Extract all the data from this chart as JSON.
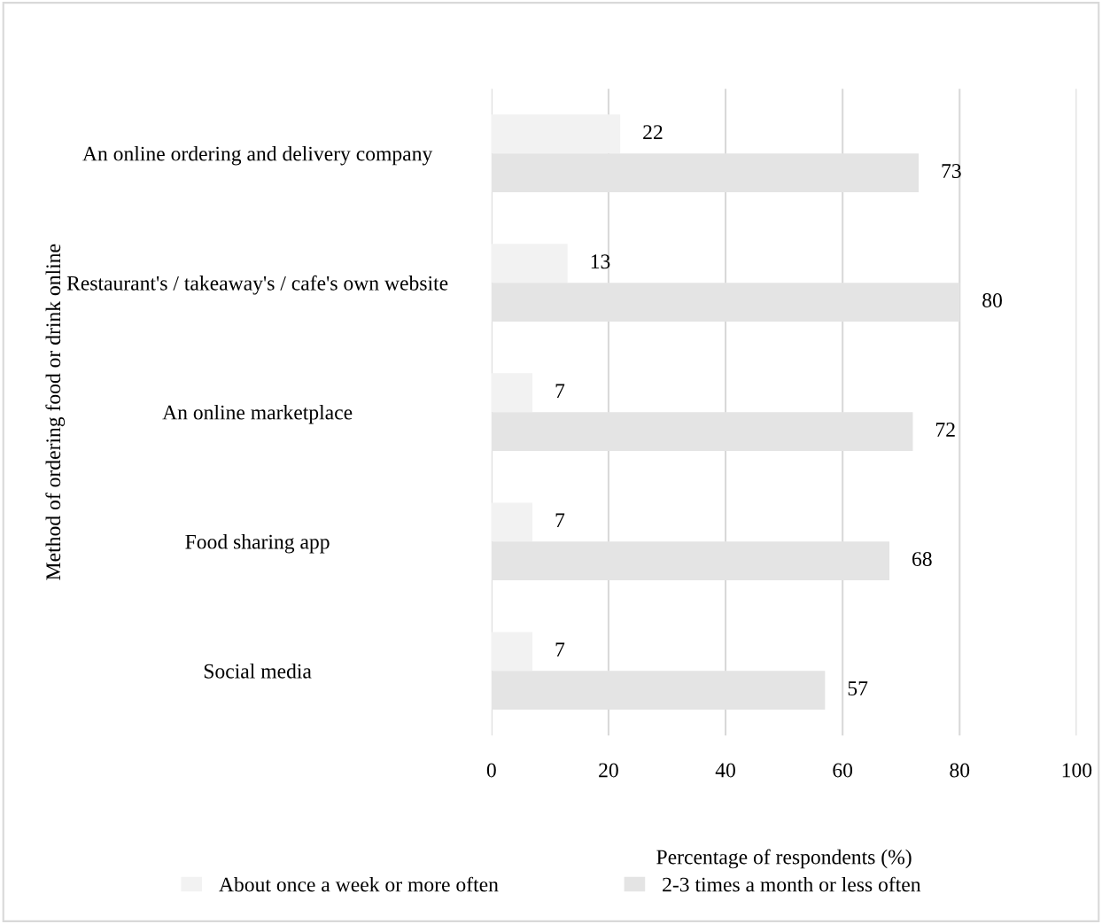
{
  "chart_data": {
    "type": "bar",
    "orientation": "horizontal",
    "xlabel": "Percentage of respondents (%)",
    "ylabel": "Method of ordering food or drink online",
    "categories": [
      "An online ordering and delivery company",
      "Restaurant's / takeaway's / cafe's own website",
      "An online marketplace",
      "Food sharing app",
      "Social media"
    ],
    "series": [
      {
        "name": "About once a week or more often",
        "color": "#f2f2f2",
        "values": [
          22,
          13,
          7,
          7,
          7
        ]
      },
      {
        "name": "2-3 times a month or less often",
        "color": "#e4e4e4",
        "values": [
          73,
          80,
          72,
          68,
          57
        ]
      }
    ],
    "xlim": [
      0,
      100
    ],
    "xticks": [
      0,
      20,
      40,
      60,
      80,
      100
    ],
    "grid": "x",
    "legend": "bottom",
    "data_labels": true
  }
}
